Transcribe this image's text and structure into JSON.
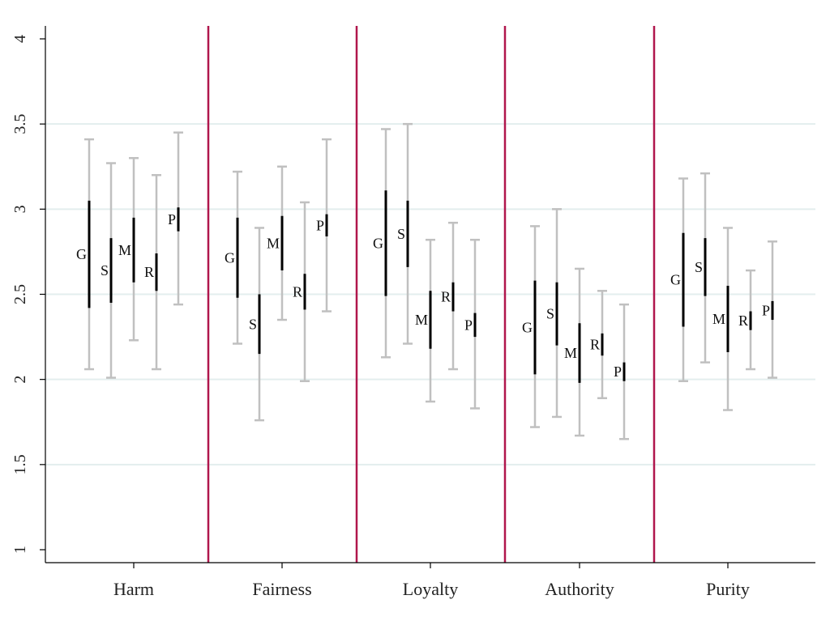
{
  "chart_data": {
    "type": "errorbar",
    "title": "",
    "xlabel": "",
    "ylabel": "",
    "ylim": [
      1,
      4
    ],
    "yticks": [
      1,
      1.5,
      2,
      2.5,
      3,
      3.5,
      4
    ],
    "ytick_labels": [
      "1",
      "1.5",
      "2",
      "2.5",
      "3",
      "3.5",
      "4"
    ],
    "grid": true,
    "categories": [
      "Harm",
      "Fairness",
      "Loyalty",
      "Authority",
      "Purity"
    ],
    "group_labels": [
      "G",
      "S",
      "M",
      "R",
      "P"
    ],
    "colors": {
      "outer_interval": "#c0c0c0",
      "inner_interval": "#000000",
      "separator": "#b0164c",
      "grid": "#e3eeee",
      "axis": "#000000"
    },
    "series": [
      {
        "category": "Harm",
        "points": [
          {
            "label": "G",
            "outer": [
              2.06,
              3.41
            ],
            "inner": [
              2.42,
              3.05
            ]
          },
          {
            "label": "S",
            "outer": [
              2.01,
              3.27
            ],
            "inner": [
              2.45,
              2.83
            ]
          },
          {
            "label": "M",
            "outer": [
              2.23,
              3.3
            ],
            "inner": [
              2.57,
              2.95
            ]
          },
          {
            "label": "R",
            "outer": [
              2.06,
              3.2
            ],
            "inner": [
              2.52,
              2.74
            ]
          },
          {
            "label": "P",
            "outer": [
              2.44,
              3.45
            ],
            "inner": [
              2.87,
              3.01
            ]
          }
        ]
      },
      {
        "category": "Fairness",
        "points": [
          {
            "label": "G",
            "outer": [
              2.21,
              3.22
            ],
            "inner": [
              2.48,
              2.95
            ]
          },
          {
            "label": "S",
            "outer": [
              1.76,
              2.89
            ],
            "inner": [
              2.15,
              2.5
            ]
          },
          {
            "label": "M",
            "outer": [
              2.35,
              3.25
            ],
            "inner": [
              2.64,
              2.96
            ]
          },
          {
            "label": "R",
            "outer": [
              1.99,
              3.04
            ],
            "inner": [
              2.41,
              2.62
            ]
          },
          {
            "label": "P",
            "outer": [
              2.4,
              3.41
            ],
            "inner": [
              2.84,
              2.97
            ]
          }
        ]
      },
      {
        "category": "Loyalty",
        "points": [
          {
            "label": "G",
            "outer": [
              2.13,
              3.47
            ],
            "inner": [
              2.49,
              3.11
            ]
          },
          {
            "label": "S",
            "outer": [
              2.21,
              3.5
            ],
            "inner": [
              2.66,
              3.05
            ]
          },
          {
            "label": "M",
            "outer": [
              1.87,
              2.82
            ],
            "inner": [
              2.18,
              2.52
            ]
          },
          {
            "label": "R",
            "outer": [
              2.06,
              2.92
            ],
            "inner": [
              2.4,
              2.57
            ]
          },
          {
            "label": "P",
            "outer": [
              1.83,
              2.82
            ],
            "inner": [
              2.25,
              2.39
            ]
          }
        ]
      },
      {
        "category": "Authority",
        "points": [
          {
            "label": "G",
            "outer": [
              1.72,
              2.9
            ],
            "inner": [
              2.03,
              2.58
            ]
          },
          {
            "label": "S",
            "outer": [
              1.78,
              3.0
            ],
            "inner": [
              2.2,
              2.57
            ]
          },
          {
            "label": "M",
            "outer": [
              1.67,
              2.65
            ],
            "inner": [
              1.98,
              2.33
            ]
          },
          {
            "label": "R",
            "outer": [
              1.89,
              2.52
            ],
            "inner": [
              2.14,
              2.27
            ]
          },
          {
            "label": "P",
            "outer": [
              1.65,
              2.44
            ],
            "inner": [
              1.99,
              2.1
            ]
          }
        ]
      },
      {
        "category": "Purity",
        "points": [
          {
            "label": "G",
            "outer": [
              1.99,
              3.18
            ],
            "inner": [
              2.31,
              2.86
            ]
          },
          {
            "label": "S",
            "outer": [
              2.1,
              3.21
            ],
            "inner": [
              2.49,
              2.83
            ]
          },
          {
            "label": "M",
            "outer": [
              1.82,
              2.89
            ],
            "inner": [
              2.16,
              2.55
            ]
          },
          {
            "label": "R",
            "outer": [
              2.06,
              2.64
            ],
            "inner": [
              2.29,
              2.4
            ]
          },
          {
            "label": "P",
            "outer": [
              2.01,
              2.81
            ],
            "inner": [
              2.35,
              2.46
            ]
          }
        ]
      }
    ]
  }
}
